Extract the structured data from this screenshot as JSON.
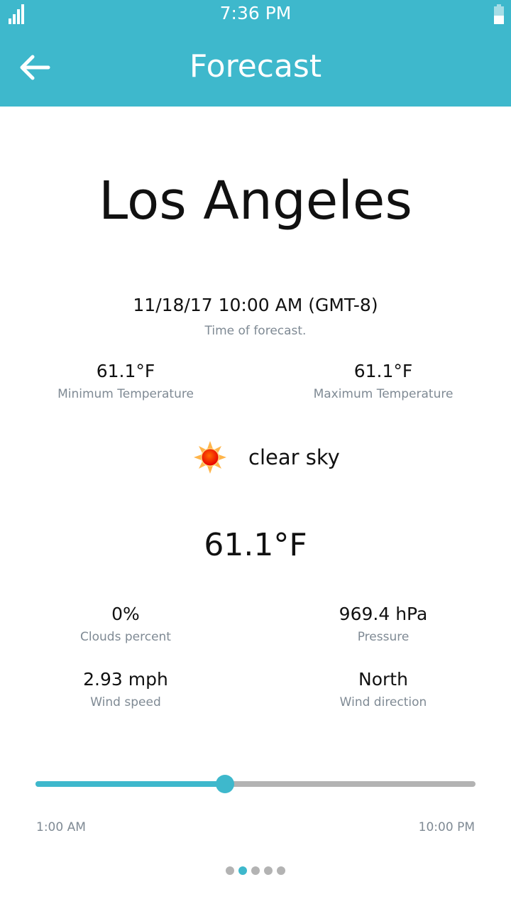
{
  "status_bar": {
    "time": "7:36 PM",
    "battery_level": 0.5,
    "signal_bars": 4
  },
  "header": {
    "title": "Forecast",
    "back_icon": "arrow-left-icon"
  },
  "city": "Los Angeles",
  "forecast_time": {
    "value": "11/18/17 10:00 AM (GMT-8)",
    "label": "Time of forecast."
  },
  "min_temp": {
    "value": "61.1°F",
    "label": "Minimum Temperature"
  },
  "max_temp": {
    "value": "61.1°F",
    "label": "Maximum Temperature"
  },
  "condition": {
    "icon": "sun-icon",
    "text": "clear sky"
  },
  "temperature": "61.1°F",
  "clouds": {
    "value": "0%",
    "label": "Clouds percent"
  },
  "pressure": {
    "value": "969.4 hPa",
    "label": "Pressure"
  },
  "wind_speed": {
    "value": "2.93 mph",
    "label": "Wind speed"
  },
  "wind_direction": {
    "value": "North",
    "label": "Wind direction"
  },
  "slider": {
    "start_label": "1:00 AM",
    "end_label": "10:00 PM",
    "position": 0.43,
    "accent": "#3eb8cc"
  },
  "pager": {
    "count": 5,
    "active": 1
  }
}
